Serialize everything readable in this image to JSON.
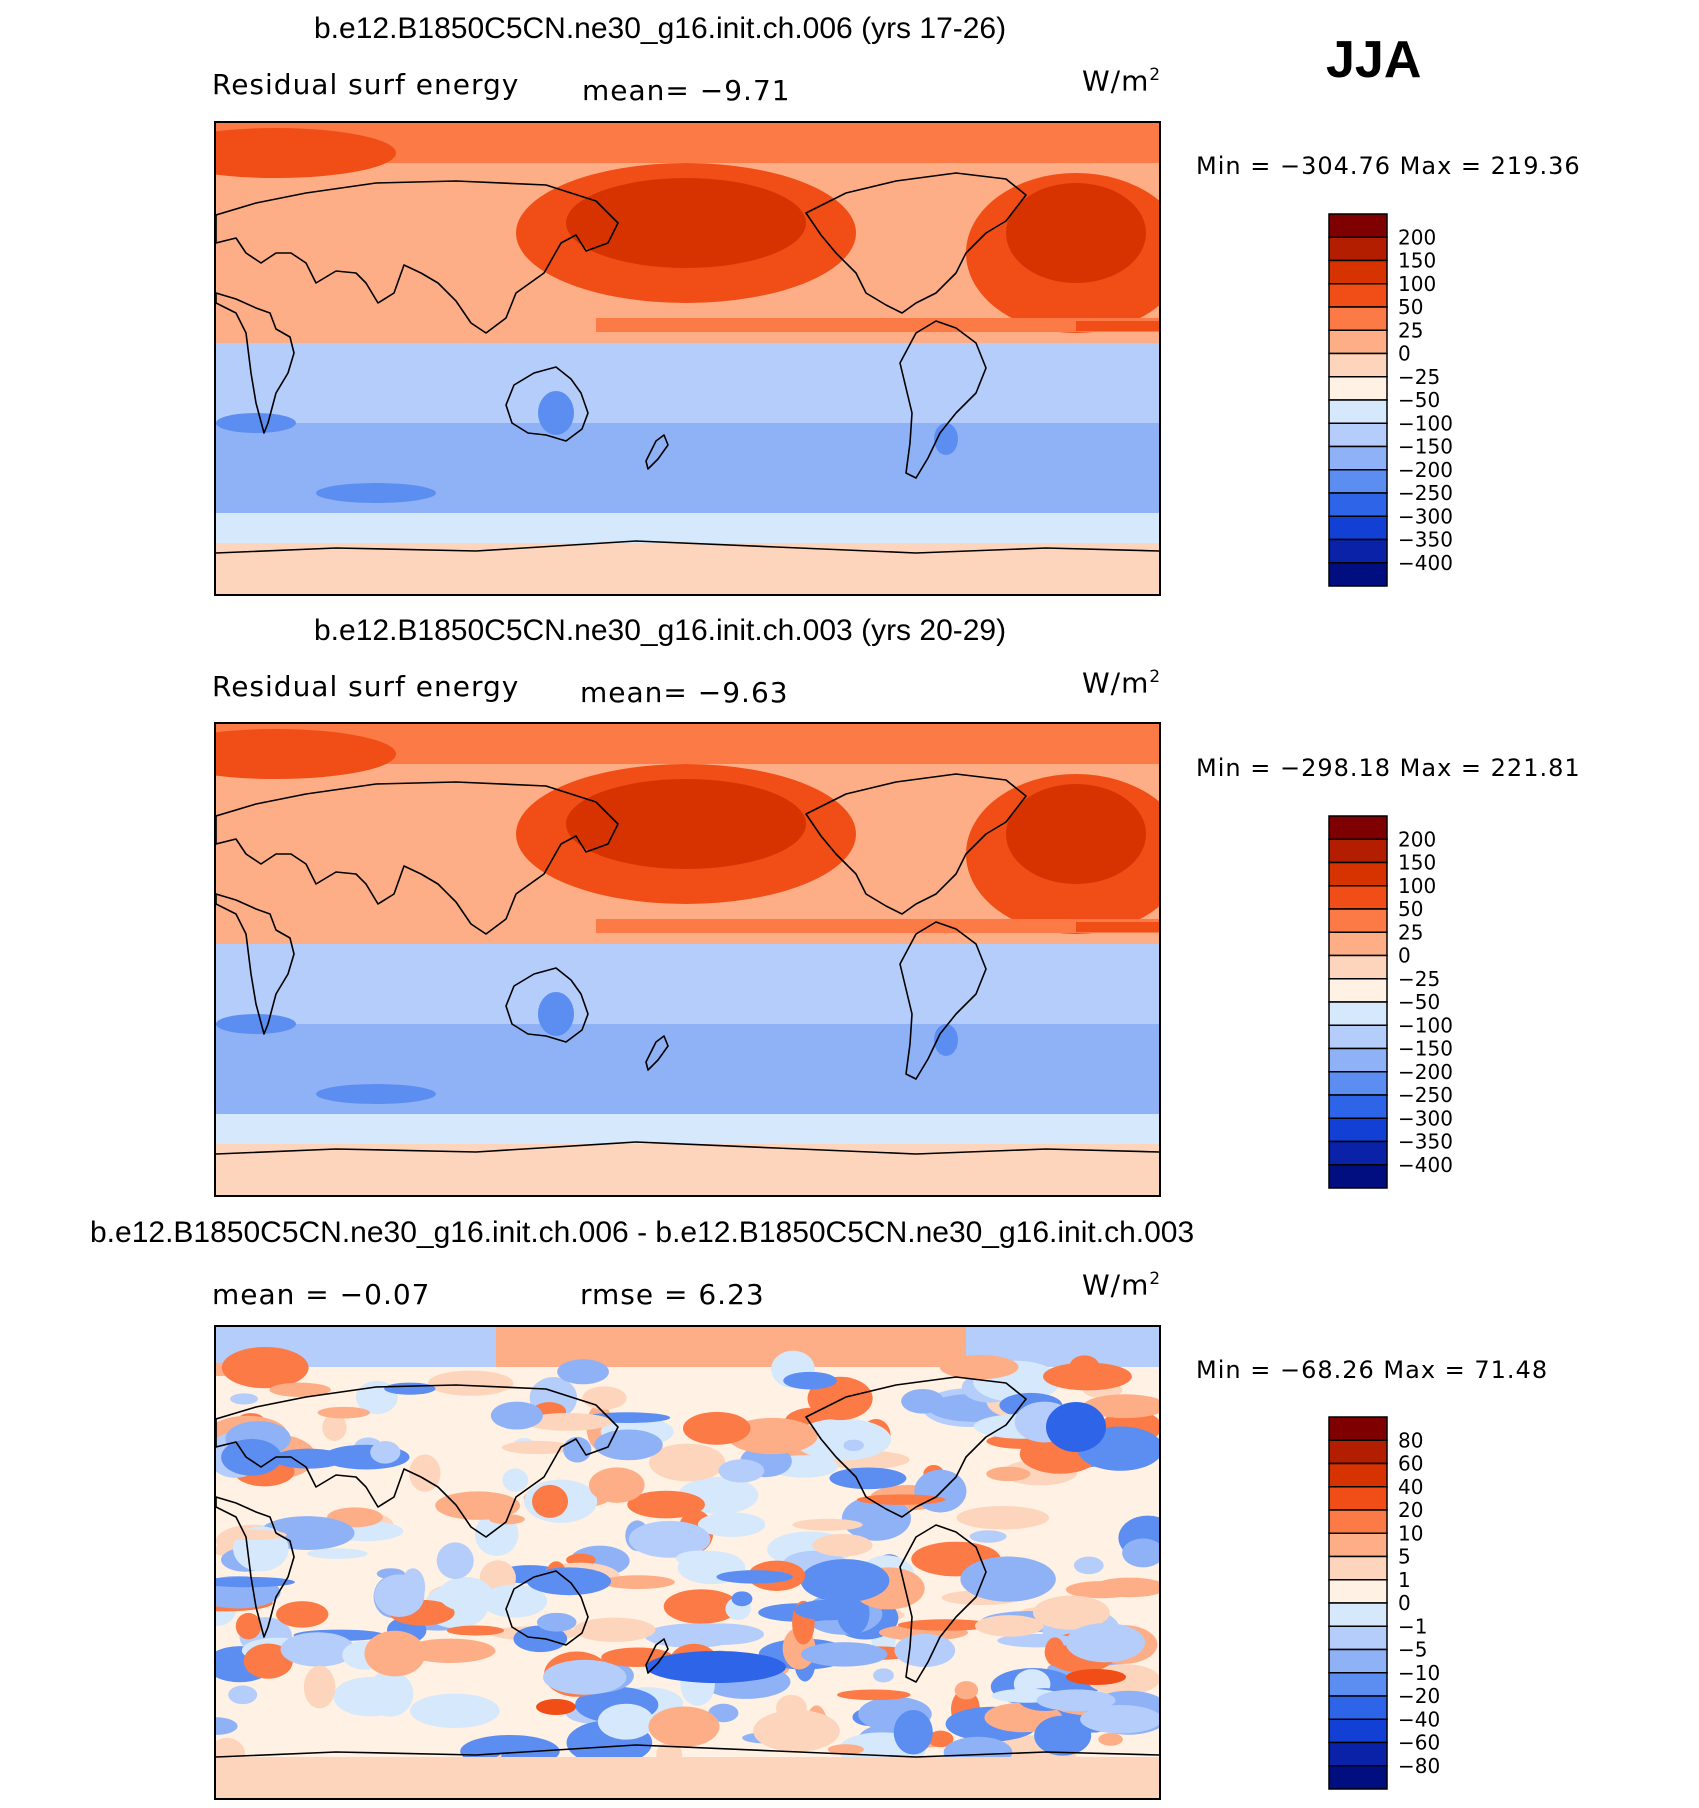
{
  "season": "JJA",
  "panels": [
    {
      "title": "b.e12.B1850C5CN.ne30_g16.init.ch.006 (yrs 17-26)",
      "left_label": "Residual surf energy",
      "stat_label": "mean=  −9.71",
      "stat2_label": "",
      "units": "W/m",
      "units_sup": "2",
      "minmax": "Min = −304.76 Max = 219.36",
      "kind": "field"
    },
    {
      "title": "b.e12.B1850C5CN.ne30_g16.init.ch.003 (yrs 20-29)",
      "left_label": "Residual surf energy",
      "stat_label": "mean=  −9.63",
      "stat2_label": "",
      "units": "W/m",
      "units_sup": "2",
      "minmax": "Min = −298.18 Max = 221.81",
      "kind": "field"
    },
    {
      "title": "b.e12.B1850C5CN.ne30_g16.init.ch.006 - b.e12.B1850C5CN.ne30_g16.init.ch.003",
      "left_label": "mean =  −0.07",
      "stat_label": "rmse =   6.23",
      "stat2_label": "",
      "units": "W/m",
      "units_sup": "2",
      "minmax": "Min = −68.26 Max =  71.48",
      "kind": "diff"
    }
  ],
  "colorbars": [
    {
      "labels": [
        "200",
        "150",
        "100",
        "50",
        "25",
        "0",
        "−25",
        "−50",
        "−100",
        "−150",
        "−200",
        "−250",
        "−300",
        "−350",
        "−400"
      ],
      "colors": [
        "#7f0000",
        "#b31d00",
        "#d63300",
        "#f04e16",
        "#fb7a45",
        "#fdae86",
        "#fdd5bd",
        "#fff1e3",
        "#d6e8fb",
        "#b5cdfa",
        "#8fb2f7",
        "#5c8ef2",
        "#2e64e8",
        "#1240d4",
        "#0a22a8",
        "#000e80"
      ]
    },
    {
      "labels": [
        "200",
        "150",
        "100",
        "50",
        "25",
        "0",
        "−25",
        "−50",
        "−100",
        "−150",
        "−200",
        "−250",
        "−300",
        "−350",
        "−400"
      ],
      "colors": [
        "#7f0000",
        "#b31d00",
        "#d63300",
        "#f04e16",
        "#fb7a45",
        "#fdae86",
        "#fdd5bd",
        "#fff1e3",
        "#d6e8fb",
        "#b5cdfa",
        "#8fb2f7",
        "#5c8ef2",
        "#2e64e8",
        "#1240d4",
        "#0a22a8",
        "#000e80"
      ]
    },
    {
      "labels": [
        "80",
        "60",
        "40",
        "20",
        "10",
        "5",
        "1",
        "0",
        "−1",
        "−5",
        "−10",
        "−20",
        "−40",
        "−60",
        "−80"
      ],
      "colors": [
        "#7f0000",
        "#b31d00",
        "#d63300",
        "#f04e16",
        "#fb7a45",
        "#fdae86",
        "#fdd5bd",
        "#fff1e3",
        "#d6e8fb",
        "#b5cdfa",
        "#8fb2f7",
        "#5c8ef2",
        "#2e64e8",
        "#1240d4",
        "#0a22a8",
        "#000e80"
      ]
    }
  ],
  "chart_data": [
    {
      "type": "heatmap",
      "title": "b.e12.B1850C5CN.ne30_g16.init.ch.006 (yrs 17-26)",
      "variable": "Residual surf energy",
      "units": "W/m2",
      "mean": -9.71,
      "min": -304.76,
      "max": 219.36,
      "contour_levels": [
        -400,
        -350,
        -300,
        -250,
        -200,
        -150,
        -100,
        -50,
        -25,
        0,
        25,
        50,
        100,
        150,
        200
      ]
    },
    {
      "type": "heatmap",
      "title": "b.e12.B1850C5CN.ne30_g16.init.ch.003 (yrs 20-29)",
      "variable": "Residual surf energy",
      "units": "W/m2",
      "mean": -9.63,
      "min": -298.18,
      "max": 221.81,
      "contour_levels": [
        -400,
        -350,
        -300,
        -250,
        -200,
        -150,
        -100,
        -50,
        -25,
        0,
        25,
        50,
        100,
        150,
        200
      ]
    },
    {
      "type": "heatmap",
      "title": "b.e12.B1850C5CN.ne30_g16.init.ch.006 - b.e12.B1850C5CN.ne30_g16.init.ch.003",
      "units": "W/m2",
      "mean": -0.07,
      "rmse": 6.23,
      "min": -68.26,
      "max": 71.48,
      "contour_levels": [
        -80,
        -60,
        -40,
        -20,
        -10,
        -5,
        -1,
        0,
        1,
        5,
        10,
        20,
        40,
        60,
        80
      ]
    }
  ]
}
